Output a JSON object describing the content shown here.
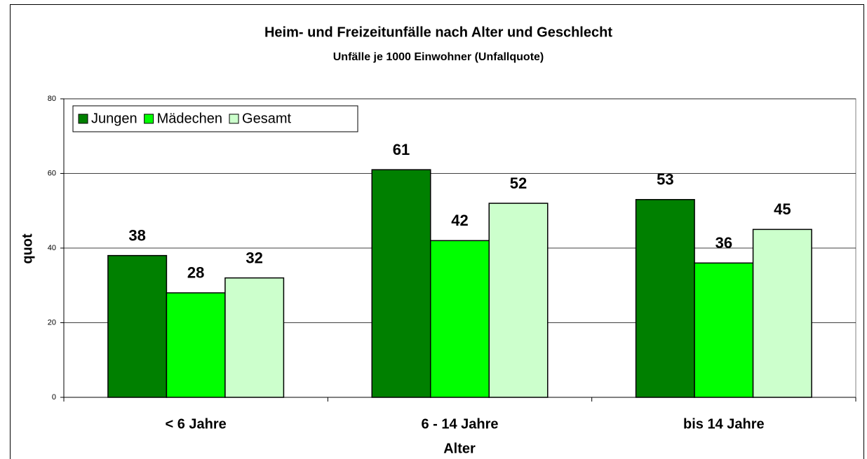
{
  "chart_data": {
    "type": "bar",
    "title": "Heim- und Freizeitunfälle nach Alter und Geschlecht",
    "subtitle": "Unfälle je 1000 Einwohner (Unfallquote)",
    "x_label": "Alter",
    "y_label": "quot",
    "categories": [
      "< 6 Jahre",
      "6 - 14 Jahre",
      "bis 14 Jahre"
    ],
    "series": [
      {
        "name": "Jungen",
        "color": "#008000",
        "values": [
          38,
          61,
          53
        ]
      },
      {
        "name": "Mädechen",
        "color": "#00ff00",
        "values": [
          28,
          42,
          36
        ]
      },
      {
        "name": "Gesamt",
        "color": "#ccffcc",
        "values": [
          32,
          52,
          45
        ]
      }
    ],
    "ylim": [
      0,
      80
    ],
    "yticks": [
      0,
      20,
      40,
      60,
      80
    ],
    "grid": true,
    "legend": "top-left"
  }
}
